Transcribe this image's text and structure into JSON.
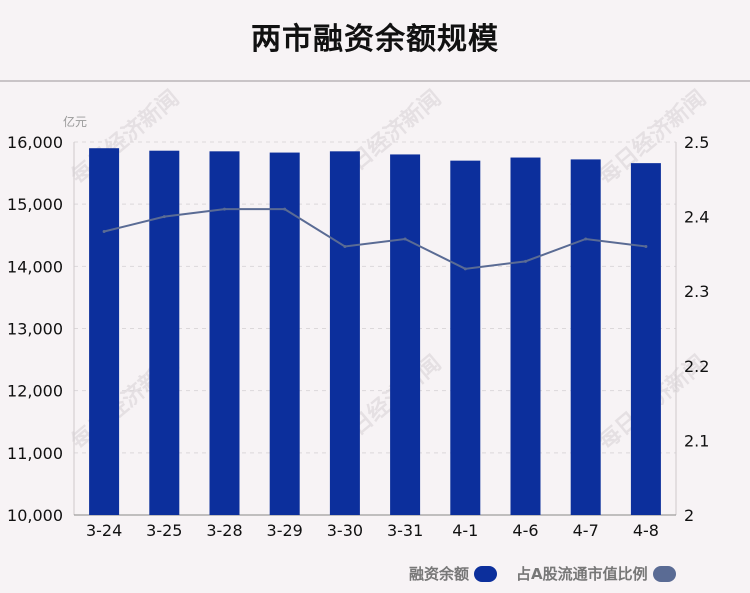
{
  "title": "两市融资余额规模",
  "unit_label": "亿元",
  "watermark_text": "每日经济新闻",
  "colors": {
    "bar": "#0c2f9c",
    "line": "#5a6b94",
    "grid": "#dcd8da",
    "axis_text": "#111111",
    "background": "#f7f3f5"
  },
  "legend": {
    "bar_label": "融资余额",
    "line_label": "占A股流通市值比例"
  },
  "chart_data": {
    "type": "bar",
    "title": "两市融资余额规模",
    "categories": [
      "3-24",
      "3-25",
      "3-28",
      "3-29",
      "3-30",
      "3-31",
      "4-1",
      "4-6",
      "4-7",
      "4-8"
    ],
    "series": [
      {
        "name": "融资余额",
        "type": "bar",
        "axis": "left",
        "values": [
          15900,
          15860,
          15850,
          15830,
          15850,
          15800,
          15700,
          15750,
          15720,
          15660
        ]
      },
      {
        "name": "占A股流通市值比例",
        "type": "line",
        "axis": "right",
        "values": [
          2.38,
          2.4,
          2.41,
          2.41,
          2.36,
          2.37,
          2.33,
          2.34,
          2.37,
          2.36
        ]
      }
    ],
    "y_left": {
      "label": "亿元",
      "range": [
        10000,
        16000
      ],
      "ticks": [
        10000,
        11000,
        12000,
        13000,
        14000,
        15000,
        16000
      ],
      "tick_labels": [
        "10,000",
        "11,000",
        "12,000",
        "13,000",
        "14,000",
        "15,000",
        "16,000"
      ]
    },
    "y_right": {
      "range": [
        2.0,
        2.5
      ],
      "ticks": [
        2.0,
        2.1,
        2.2,
        2.3,
        2.4,
        2.5
      ],
      "tick_labels": [
        "2",
        "2.1",
        "2.2",
        "2.3",
        "2.4",
        "2.5"
      ]
    },
    "grid": true,
    "legend_position": "bottom-right"
  }
}
